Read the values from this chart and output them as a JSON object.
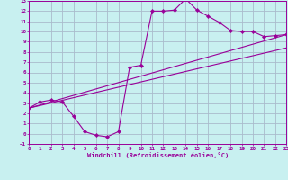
{
  "bg_color": "#c8f0f0",
  "grid_color": "#aabbcc",
  "line_color": "#990099",
  "xlim": [
    0,
    23
  ],
  "ylim": [
    -1,
    13
  ],
  "xtick_vals": [
    0,
    1,
    2,
    3,
    4,
    5,
    6,
    7,
    8,
    9,
    10,
    11,
    12,
    13,
    14,
    15,
    16,
    17,
    18,
    19,
    20,
    21,
    22,
    23
  ],
  "ytick_vals": [
    -1,
    0,
    1,
    2,
    3,
    4,
    5,
    6,
    7,
    8,
    9,
    10,
    11,
    12,
    13
  ],
  "xlabel": "Windchill (Refroidissement éolien,°C)",
  "line1_x": [
    0,
    23
  ],
  "line1_y": [
    2.5,
    9.7
  ],
  "line2_x": [
    0,
    23
  ],
  "line2_y": [
    2.5,
    8.4
  ],
  "line3_x": [
    0,
    1,
    2,
    3,
    4,
    5,
    6,
    7,
    8,
    9,
    10,
    11,
    12,
    13,
    14,
    15,
    16,
    17,
    18,
    19,
    20,
    21,
    22,
    23
  ],
  "line3_y": [
    2.5,
    3.1,
    3.3,
    3.1,
    1.7,
    0.2,
    -0.15,
    -0.3,
    0.2,
    6.5,
    6.7,
    12.0,
    12.0,
    12.1,
    13.2,
    12.1,
    11.5,
    10.9,
    10.1,
    10.0,
    10.0,
    9.5,
    9.6,
    9.7
  ]
}
